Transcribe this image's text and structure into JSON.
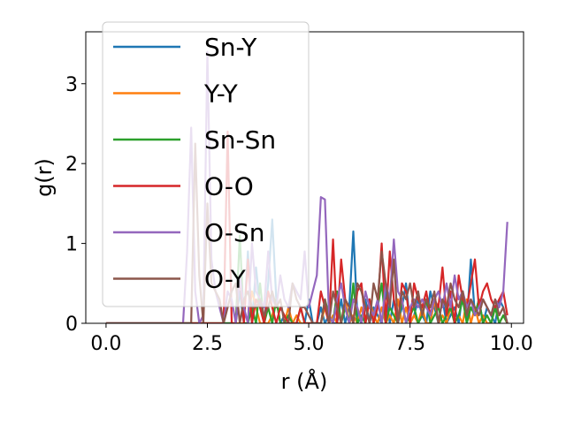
{
  "chart_data": {
    "type": "line",
    "xlabel": "r (Å)",
    "ylabel": "g(r)",
    "xlim": [
      -0.5,
      10.3
    ],
    "ylim": [
      0,
      3.65
    ],
    "xticks": [
      0.0,
      2.5,
      5.0,
      7.5,
      10.0
    ],
    "xtick_labels": [
      "0.0",
      "2.5",
      "5.0",
      "7.5",
      "10.0"
    ],
    "yticks": [
      0,
      1,
      2,
      3
    ],
    "ytick_labels": [
      "0",
      "1",
      "2",
      "3"
    ],
    "grid": false,
    "legend": "upper-left",
    "x": [
      0.0,
      0.1,
      0.2,
      0.3,
      0.4,
      0.5,
      0.6,
      0.7,
      0.8,
      0.9,
      1.0,
      1.1,
      1.2,
      1.3,
      1.4,
      1.5,
      1.6,
      1.7,
      1.8,
      1.9,
      2.0,
      2.1,
      2.2,
      2.3,
      2.4,
      2.5,
      2.6,
      2.7,
      2.8,
      2.9,
      3.0,
      3.1,
      3.2,
      3.3,
      3.4,
      3.5,
      3.6,
      3.7,
      3.8,
      3.9,
      4.0,
      4.1,
      4.2,
      4.3,
      4.4,
      4.5,
      4.6,
      4.7,
      4.8,
      4.9,
      5.0,
      5.1,
      5.2,
      5.3,
      5.4,
      5.5,
      5.6,
      5.7,
      5.8,
      5.9,
      6.0,
      6.1,
      6.2,
      6.3,
      6.4,
      6.5,
      6.6,
      6.7,
      6.8,
      6.9,
      7.0,
      7.1,
      7.2,
      7.3,
      7.4,
      7.5,
      7.6,
      7.7,
      7.8,
      7.9,
      8.0,
      8.1,
      8.2,
      8.3,
      8.4,
      8.5,
      8.6,
      8.7,
      8.8,
      8.9,
      9.0,
      9.1,
      9.2,
      9.3,
      9.4,
      9.5,
      9.6,
      9.7,
      9.8,
      9.9
    ],
    "series": [
      {
        "name": "Sn-Y",
        "color": "#1f77b4",
        "values": [
          0,
          0,
          0,
          0,
          0,
          0,
          0,
          0,
          0,
          0,
          0,
          0,
          0,
          0,
          0,
          0,
          0,
          0,
          0,
          0,
          0,
          0,
          0,
          0,
          0,
          0,
          0,
          0,
          0,
          0,
          0,
          0,
          0,
          0.4,
          0,
          0.9,
          0,
          0.7,
          0.2,
          0,
          0.5,
          1.3,
          0.3,
          0,
          0.1,
          0,
          0,
          0,
          0,
          0,
          0.3,
          0,
          0,
          0.2,
          0,
          0.1,
          0,
          0,
          0.3,
          0,
          0.2,
          1.15,
          0.1,
          0,
          0.3,
          0,
          0.2,
          0.1,
          0,
          0.4,
          0,
          0.3,
          0,
          0.2,
          0.5,
          0,
          0.1,
          0.3,
          0.1,
          0,
          0.4,
          0.2,
          0,
          0.3,
          0,
          0.1,
          0.2,
          0,
          0.4,
          0,
          0.8,
          0.1,
          0.3,
          0,
          0.2,
          0.1,
          0,
          0.3,
          0.2,
          0
        ]
      },
      {
        "name": "Y-Y",
        "color": "#ff7f0e",
        "values": [
          0,
          0,
          0,
          0,
          0,
          0,
          0,
          0,
          0,
          0,
          0,
          0,
          0,
          0,
          0,
          0,
          0,
          0,
          0,
          0,
          0,
          0,
          0,
          0,
          0,
          0,
          0,
          0,
          0,
          0,
          0,
          0,
          0,
          0,
          0,
          0,
          0.4,
          0.2,
          0,
          0,
          0,
          0.1,
          0.3,
          0,
          0,
          0.2,
          0,
          0.1,
          0,
          0,
          0,
          0,
          0,
          0,
          0.2,
          0,
          0.1,
          0,
          0,
          0.3,
          0,
          0.1,
          0,
          0.2,
          0,
          0.3,
          0.1,
          0,
          0.2,
          0,
          0.1,
          0,
          0.3,
          0,
          0.2,
          0,
          0.1,
          0,
          0.2,
          0,
          0,
          0.3,
          0,
          0.1,
          0,
          0.2,
          0,
          0.1,
          0,
          0.3,
          0,
          0.2,
          0,
          0.1,
          0,
          0,
          0.2,
          0,
          0.1,
          0
        ]
      },
      {
        "name": "Sn-Sn",
        "color": "#2ca02c",
        "values": [
          0,
          0,
          0,
          0,
          0,
          0,
          0,
          0,
          0,
          0,
          0,
          0,
          0,
          0,
          0,
          0,
          0,
          0,
          0,
          0,
          0,
          0,
          0,
          0,
          0,
          0,
          0,
          0,
          0,
          0,
          0,
          0,
          0,
          1.1,
          0,
          0,
          0.2,
          0,
          0.5,
          0,
          0.2,
          0,
          0.3,
          0,
          0,
          0.1,
          0,
          0,
          0.2,
          0,
          0,
          0,
          0,
          0,
          0.3,
          0.1,
          0,
          0.4,
          0,
          0.2,
          0,
          0.5,
          0,
          0.1,
          0,
          0.3,
          0,
          0.2,
          0.5,
          0,
          0.2,
          0.1,
          0,
          0.3,
          0,
          0.1,
          0.2,
          0,
          0.1,
          0.3,
          0,
          0.1,
          0.2,
          0,
          0.1,
          0.2,
          0,
          0.1,
          0.3,
          0,
          0.2,
          0.1,
          0.3,
          0,
          0.1,
          0,
          0.2,
          0,
          0.1,
          0
        ]
      },
      {
        "name": "O-O",
        "color": "#d62728",
        "values": [
          0,
          0,
          0,
          0,
          0,
          0,
          0,
          0,
          0,
          0,
          0,
          0,
          0,
          0,
          0,
          0,
          0,
          0,
          0,
          0,
          0,
          0,
          0,
          0,
          0,
          0,
          0,
          0,
          0,
          0,
          2.4,
          0,
          0,
          0.6,
          0,
          0.8,
          0,
          0.3,
          0.2,
          0,
          0.4,
          0.2,
          0,
          0.2,
          0.1,
          0,
          0,
          0,
          0.2,
          0,
          0,
          0,
          0,
          0.4,
          0.2,
          0,
          1.05,
          0,
          0.8,
          0.3,
          0.2,
          0,
          0.4,
          0.5,
          0,
          0.3,
          0,
          0.2,
          1.0,
          0,
          0.9,
          0.3,
          0,
          0.5,
          0.4,
          0,
          0.5,
          0.3,
          0.2,
          0.4,
          0.1,
          0.3,
          0.2,
          0.7,
          0.1,
          0.4,
          0,
          0.6,
          0.3,
          0.2,
          0.5,
          0.8,
          0.2,
          0.4,
          0.5,
          0.3,
          0.2,
          0.3,
          0.4,
          0.1
        ]
      },
      {
        "name": "O-Sn",
        "color": "#9467bd",
        "values": [
          0,
          0,
          0,
          0,
          0,
          0,
          0,
          0,
          0,
          0,
          0,
          0,
          0,
          0,
          0,
          0,
          0,
          0,
          0,
          0,
          0.9,
          2.45,
          0.4,
          0,
          0.1,
          3.4,
          0.8,
          0.4,
          0.2,
          0,
          0.4,
          0.3,
          0,
          0.6,
          0.2,
          0,
          1.0,
          0.4,
          0.3,
          0.2,
          0.9,
          0.3,
          0.2,
          0.6,
          0.3,
          0.2,
          0.5,
          0.4,
          0.3,
          0.9,
          0.2,
          0.4,
          0.6,
          1.58,
          1.55,
          0.1,
          0,
          0.3,
          0.5,
          0.2,
          0,
          0.3,
          0.2,
          0,
          0.4,
          0.2,
          0.1,
          0.3,
          0,
          0.5,
          0.3,
          1.05,
          0.4,
          0.3,
          0,
          0.2,
          0.3,
          0.2,
          0.3,
          0.2,
          0.1,
          0.3,
          0.4,
          0.2,
          0.5,
          0.2,
          0.6,
          0.3,
          0.4,
          0.2,
          0.3,
          0.1,
          0.2,
          0.3,
          0.2,
          0.1,
          0.3,
          0.2,
          0.4,
          1.27
        ]
      },
      {
        "name": "O-Y",
        "color": "#8c564b",
        "values": [
          0,
          0,
          0,
          0,
          0,
          0,
          0,
          0,
          0,
          0,
          0,
          0,
          0,
          0,
          0,
          0,
          0,
          0,
          0,
          0,
          0,
          0,
          2.25,
          0.6,
          0,
          1.5,
          0.5,
          0.4,
          0.3,
          0,
          0.2,
          0.4,
          0.5,
          0,
          0.3,
          0.4,
          0.2,
          0.2,
          0.3,
          0.1,
          0.2,
          0.4,
          0.2,
          0.3,
          0,
          0,
          0.5,
          0.3,
          0.2,
          0.2,
          0.1,
          0,
          0,
          0,
          0.3,
          0,
          0.4,
          0.2,
          0,
          0.3,
          0.2,
          0,
          0.5,
          0.4,
          0.2,
          0,
          0.5,
          0.3,
          0.9,
          0.5,
          0.2,
          0.8,
          0,
          0.4,
          0.3,
          0.5,
          0.2,
          0.4,
          0.1,
          0.3,
          0.2,
          0.4,
          0,
          0.3,
          0.2,
          0.5,
          0.3,
          0.2,
          0.4,
          0.1,
          0.3,
          0.2,
          0.1,
          0.3,
          0.2,
          0.1,
          0.3,
          0.1,
          0.2,
          0
        ]
      }
    ]
  }
}
